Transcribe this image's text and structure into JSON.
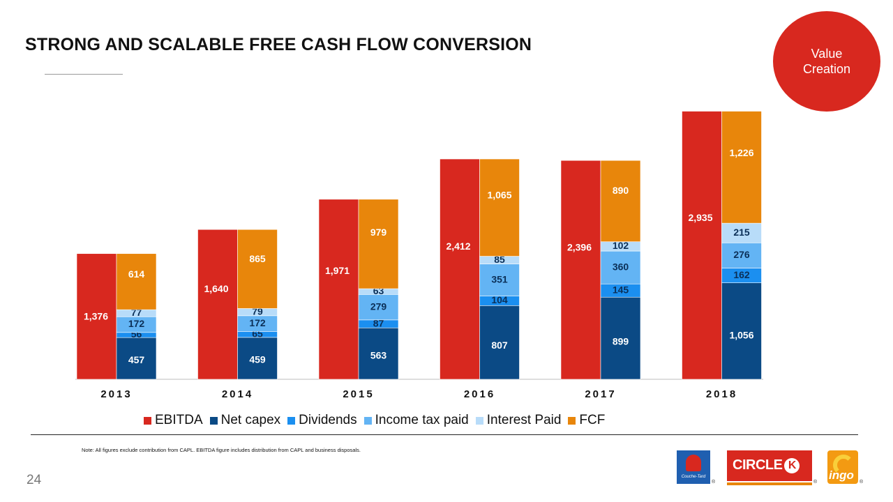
{
  "header": {
    "title": "STRONG AND SCALABLE FREE CASH FLOW CONVERSION"
  },
  "badge": {
    "line1": "Value",
    "line2": "Creation",
    "color": "#d8281f"
  },
  "chart_data": {
    "type": "bar",
    "categories": [
      "2013",
      "2014",
      "2015",
      "2016",
      "2017",
      "2018"
    ],
    "ebitda": {
      "name": "EBITDA",
      "color": "#d8281f",
      "values": [
        1376,
        1640,
        1971,
        2412,
        2396,
        2935
      ],
      "labels": [
        "1,376",
        "1,640",
        "1,971",
        "2,412",
        "2,396",
        "2,935"
      ]
    },
    "stack": [
      {
        "name": "Net capex",
        "color": "#0b4a85",
        "values": [
          457,
          459,
          563,
          807,
          899,
          1056
        ],
        "labels": [
          "457",
          "459",
          "563",
          "807",
          "899",
          "1,056"
        ]
      },
      {
        "name": "Dividends",
        "color": "#1b8ff0",
        "values": [
          56,
          65,
          87,
          104,
          145,
          162
        ],
        "labels": [
          "56",
          "65",
          "87",
          "104",
          "145",
          "162"
        ]
      },
      {
        "name": "Income tax paid",
        "color": "#63b4f4",
        "values": [
          172,
          172,
          279,
          351,
          360,
          276
        ],
        "labels": [
          "172",
          "172",
          "279",
          "351",
          "360",
          "276"
        ]
      },
      {
        "name": "Interest Paid",
        "color": "#b8dcf9",
        "values": [
          77,
          79,
          63,
          85,
          102,
          215
        ],
        "labels": [
          "77",
          "79",
          "63",
          "85",
          "102",
          "215"
        ]
      },
      {
        "name": "FCF",
        "color": "#e8860b",
        "values": [
          614,
          865,
          979,
          1065,
          890,
          1226
        ],
        "labels": [
          "614",
          "865",
          "979",
          "1,065",
          "890",
          "1,226"
        ]
      }
    ],
    "legend": [
      "EBITDA",
      "Net capex",
      "Dividends",
      "Income tax paid",
      "Interest Paid",
      "FCF"
    ],
    "legend_position": "bottom",
    "grid": false
  },
  "footer": {
    "note": "Note: All figures exclude contribution from CAPL. EBITDA figure includes distribution from CAPL and business disposals.",
    "page": "24"
  },
  "logos": {
    "couche_tard": "Couche-Tard",
    "circle_k": "CIRCLE",
    "circle_k_letter": "K",
    "ingo": "ingo",
    "registered": "®"
  }
}
